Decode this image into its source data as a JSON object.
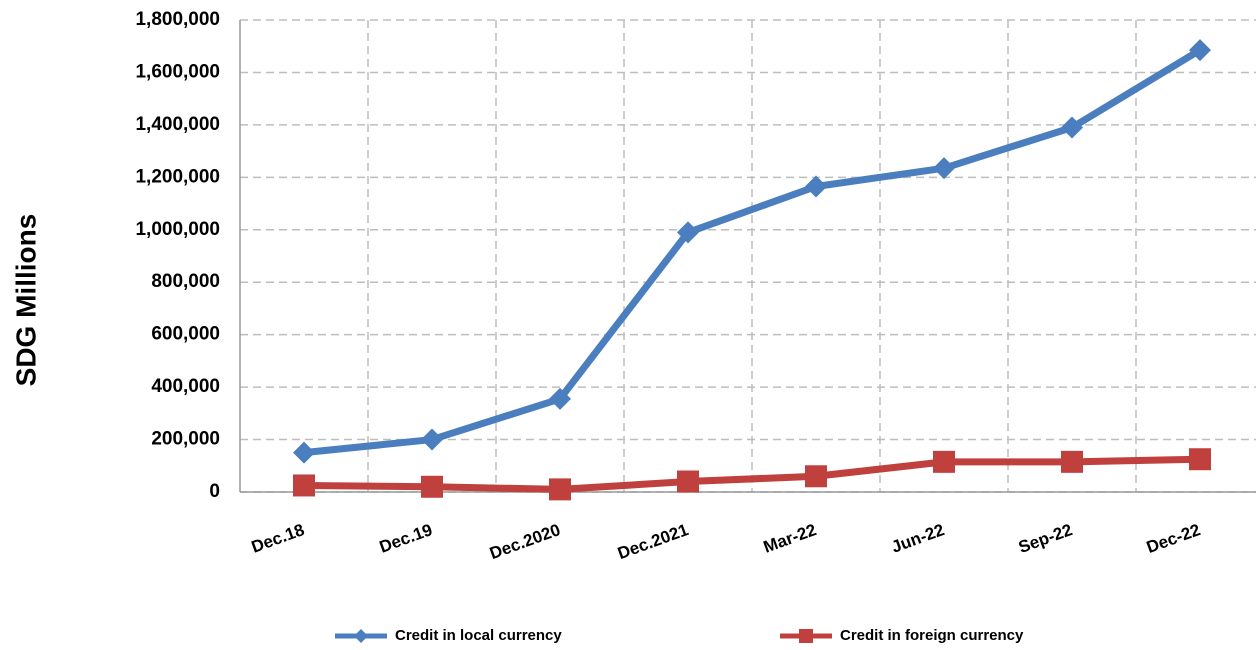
{
  "chart_data": {
    "type": "line",
    "y_label": "SDG Millions",
    "categories": [
      "Dec.18",
      "Dec.19",
      "Dec.2020",
      "Dec.2021",
      "Mar-22",
      "Jun-22",
      "Sep-22",
      "Dec-22"
    ],
    "series": [
      {
        "name": "Credit in local currency",
        "color": "#4a7ebf",
        "marker": "diamond",
        "values": [
          150000,
          200000,
          355000,
          990000,
          1165000,
          1235000,
          1390000,
          1685000
        ]
      },
      {
        "name": "Credit in foreign currency",
        "color": "#c0403e",
        "marker": "square",
        "values": [
          25000,
          20000,
          10000,
          40000,
          60000,
          115000,
          115000,
          125000
        ]
      }
    ],
    "ylim": [
      0,
      1800000
    ],
    "yticks": [
      0,
      {
        "value": 200000,
        "label": "200,000"
      },
      {
        "value": 400000,
        "label": "400,000"
      },
      {
        "value": 600000,
        "label": "600,000"
      },
      {
        "value": 800000,
        "label": "800,000"
      },
      {
        "value": 1000000,
        "label": "1,000,000"
      },
      {
        "value": 1200000,
        "label": "1,200,000"
      },
      {
        "value": 1400000,
        "label": "1,400,000"
      },
      {
        "value": 1600000,
        "label": "1,600,000"
      },
      {
        "value": 1800000,
        "label": "1,800,000"
      }
    ],
    "grid": true,
    "legend": "bottom"
  }
}
